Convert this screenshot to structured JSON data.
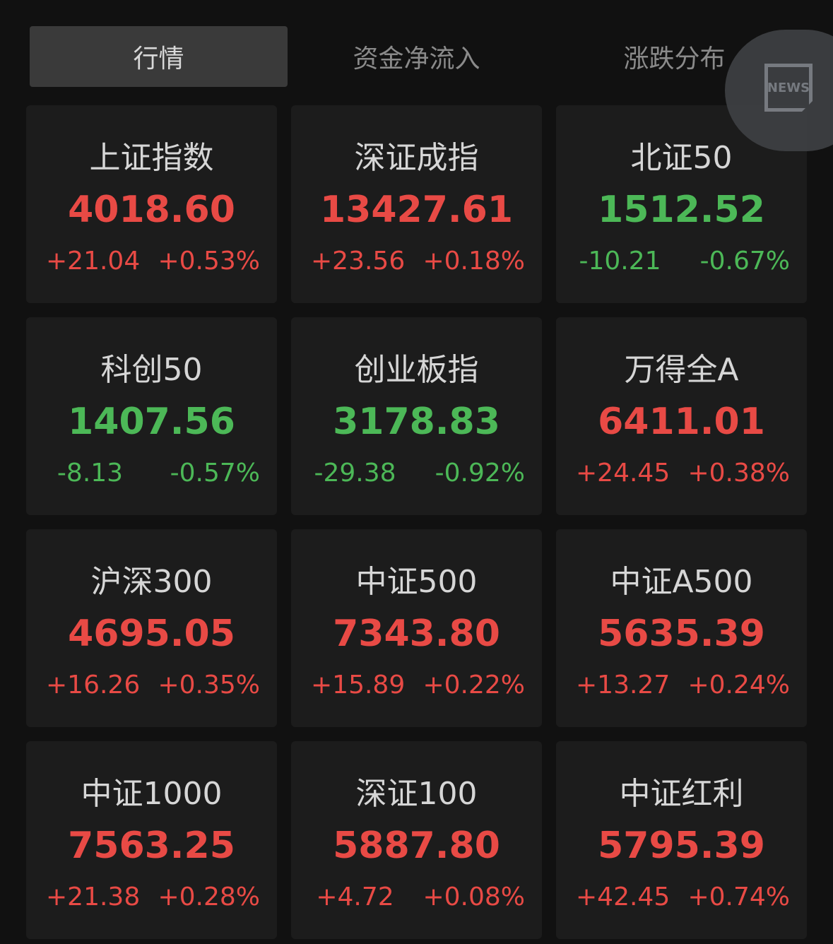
{
  "tabs": [
    {
      "label": "行情",
      "active": true
    },
    {
      "label": "资金净流入",
      "active": false
    },
    {
      "label": "涨跌分布",
      "active": false
    }
  ],
  "news_button": {
    "label": "NEWS",
    "icon": "news-icon"
  },
  "colors": {
    "up": "#e84a45",
    "down": "#4cb857",
    "background": "#111111",
    "card": "#1c1c1c"
  },
  "indices": [
    {
      "name": "上证指数",
      "price": "4018.60",
      "change": "+21.04",
      "percent": "+0.53%",
      "direction": "up"
    },
    {
      "name": "深证成指",
      "price": "13427.61",
      "change": "+23.56",
      "percent": "+0.18%",
      "direction": "up"
    },
    {
      "name": "北证50",
      "price": "1512.52",
      "change": "-10.21",
      "percent": "-0.67%",
      "direction": "down"
    },
    {
      "name": "科创50",
      "price": "1407.56",
      "change": "-8.13",
      "percent": "-0.57%",
      "direction": "down"
    },
    {
      "name": "创业板指",
      "price": "3178.83",
      "change": "-29.38",
      "percent": "-0.92%",
      "direction": "down"
    },
    {
      "name": "万得全A",
      "price": "6411.01",
      "change": "+24.45",
      "percent": "+0.38%",
      "direction": "up"
    },
    {
      "name": "沪深300",
      "price": "4695.05",
      "change": "+16.26",
      "percent": "+0.35%",
      "direction": "up"
    },
    {
      "name": "中证500",
      "price": "7343.80",
      "change": "+15.89",
      "percent": "+0.22%",
      "direction": "up"
    },
    {
      "name": "中证A500",
      "price": "5635.39",
      "change": "+13.27",
      "percent": "+0.24%",
      "direction": "up"
    },
    {
      "name": "中证1000",
      "price": "7563.25",
      "change": "+21.38",
      "percent": "+0.28%",
      "direction": "up"
    },
    {
      "name": "深证100",
      "price": "5887.80",
      "change": "+4.72",
      "percent": "+0.08%",
      "direction": "up"
    },
    {
      "name": "中证红利",
      "price": "5795.39",
      "change": "+42.45",
      "percent": "+0.74%",
      "direction": "up"
    }
  ]
}
